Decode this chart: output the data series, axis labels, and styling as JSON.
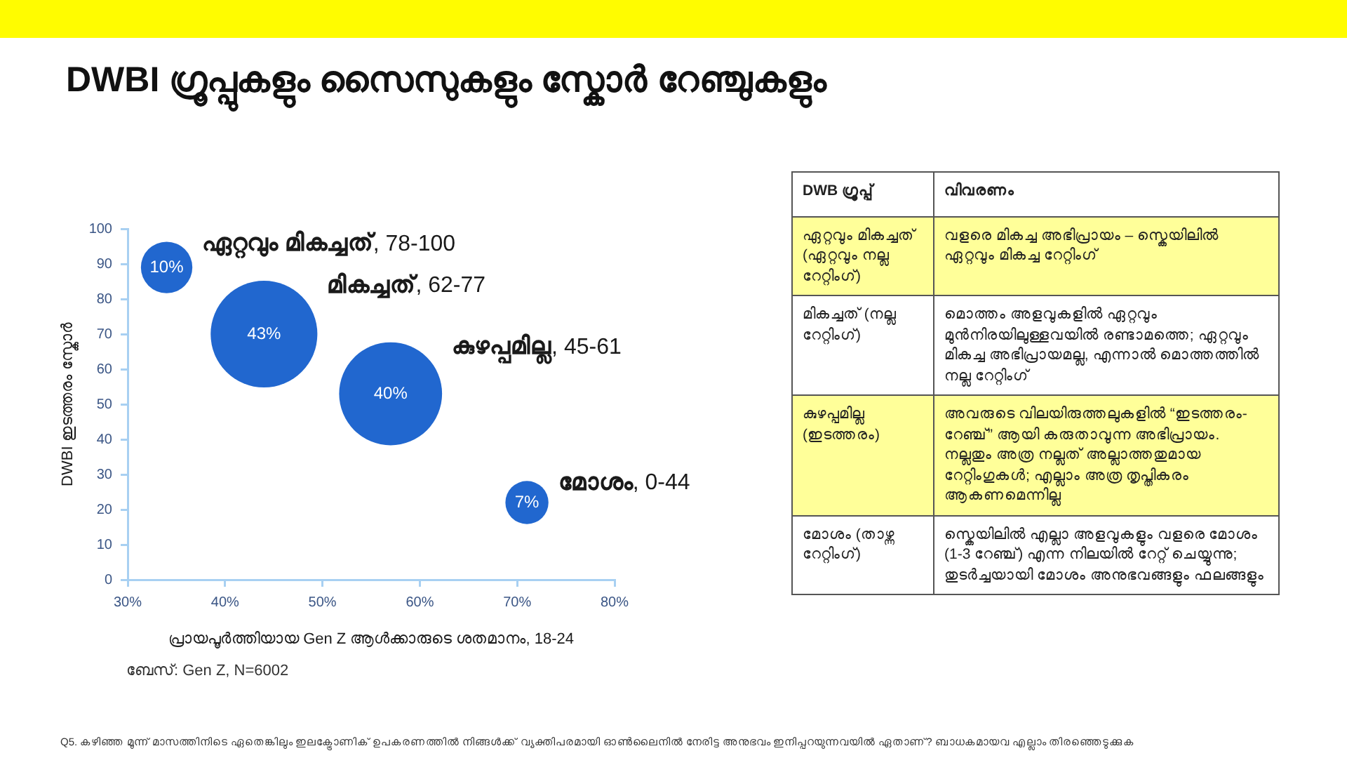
{
  "chart_data": [
    {
      "type": "bubble",
      "title": "DWBI ഗ്രൂപ്പുകളും സൈസുകളും സ്കോർ റേഞ്ചുകളും",
      "xlabel": "പ്രായപൂർത്തിയായ Gen Z ആൾക്കാരുടെ ശതമാനം, 18-24",
      "ylabel": "DWBI ഇടത്തരം സ്കോർ",
      "annotations": [
        "ബേസ്: Gen Z, N=6002",
        "Q5. കഴിഞ്ഞ മൂന്ന് മാസത്തിനിടെ ഏതെങ്കിലും ഇലക്ട്രോണിക് ഉപകരണത്തിൽ നിങ്ങൾക്ക് വ്യക്തിപരമായി ഓൺലൈനിൽ നേരിട്ട അനുഭവം ഇനിപ്പറയുന്നവയിൽ ഏതാണ്? ബാധകമായവ എല്ലാം തിരഞ്ഞെടുക്കുക"
      ],
      "xlim": [
        30,
        80
      ],
      "xticks": [
        {
          "value": 30,
          "label": "30%"
        },
        {
          "value": 40,
          "label": "40%"
        },
        {
          "value": 50,
          "label": "50%"
        },
        {
          "value": 60,
          "label": "60%"
        },
        {
          "value": 70,
          "label": "70%"
        },
        {
          "value": 80,
          "label": "80%"
        }
      ],
      "ylim": [
        0,
        100
      ],
      "yticks": [
        0,
        10,
        20,
        30,
        40,
        50,
        60,
        70,
        80,
        90,
        100
      ],
      "series": [
        {
          "name": "ഏറ്റവും മികച്ചത്, 78-100",
          "color": "#2167cf",
          "x": [
            34
          ],
          "values": [
            89
          ],
          "sizes": [
            10
          ],
          "value_labels": [
            "10%"
          ]
        },
        {
          "name": "മികച്ചത്, 62-77",
          "color": "#2167cf",
          "x": [
            44
          ],
          "values": [
            70
          ],
          "sizes": [
            43
          ],
          "value_labels": [
            "43%"
          ]
        },
        {
          "name": "കുഴപ്പമില്ല, 45-61",
          "color": "#2167cf",
          "x": [
            57
          ],
          "values": [
            53
          ],
          "sizes": [
            40
          ],
          "value_labels": [
            "40%"
          ]
        },
        {
          "name": "മോശം, 0-44",
          "color": "#2167cf",
          "x": [
            71
          ],
          "values": [
            22
          ],
          "sizes": [
            7
          ],
          "value_labels": [
            "7%"
          ]
        }
      ]
    },
    {
      "type": "other",
      "colors": [
        "#ffffff",
        "#ffff99",
        "#ffffff",
        "#ffff99",
        "#ffffff"
      ],
      "annotations": [
        "DWB ഗ്രൂപ്പ്",
        "വിവരണം",
        "ഏറ്റവും മികച്ചത് (ഏറ്റവും നല്ല റേറ്റിംഗ്)",
        "വളരെ മികച്ച അഭിപ്രായം – സ്കെയിലിൽ ഏറ്റവും മികച്ച റേറ്റിംഗ്",
        "മികച്ചത് (നല്ല റേറ്റിംഗ്)",
        "മൊത്തം അളവുകളിൽ ഏറ്റവും മുൻനിരയിലുള്ളവയിൽ രണ്ടാമത്തെ; ഏറ്റവും മികച്ച അഭിപ്രായമല്ല, എന്നാൽ മൊത്തത്തിൽ നല്ല റേറ്റിംഗ്",
        "കുഴപ്പമില്ല (ഇടത്തരം)",
        "അവരുടെ വിലയിരുത്തലുകളിൽ “ഇടത്തരം-റേഞ്ച്” ആയി കരുതാവുന്ന അഭിപ്രായം. നല്ലതും അത്ര നല്ലത് അല്ലാത്തതുമായ റേറ്റിംഗുകൾ; എല്ലാം അത്ര തൃപ്തികരം ആകണമെന്നില്ല",
        "മോശം (താഴ്ന്ന റേറ്റിംഗ്)",
        "സ്കെയിലിൽ എല്ലാ അളവുകളും വളരെ മോശം (1-3 റേഞ്ച്) എന്ന നിലയിൽ റേറ്റ് ചെയ്യുന്നു; തുടർച്ചയായി മോശം അനുഭവങ്ങളും ഫലങ്ങളും"
      ]
    }
  ]
}
